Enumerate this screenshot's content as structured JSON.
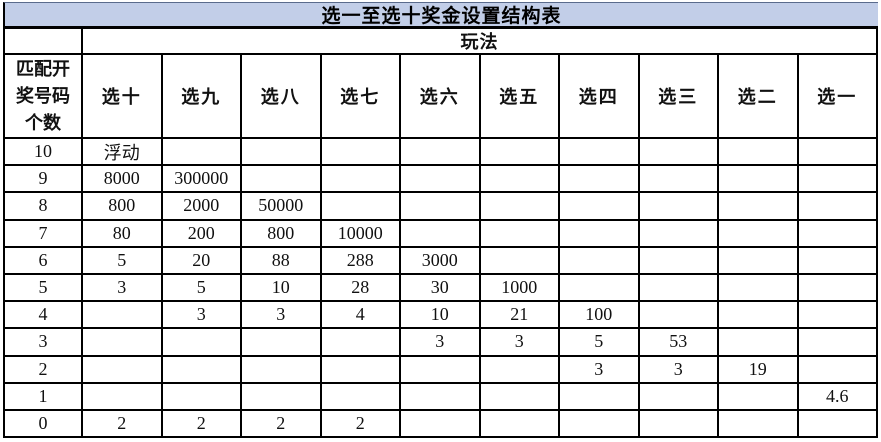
{
  "title": "选一至选十奖金设置结构表",
  "group_header": "玩法",
  "row_header": "匹配开奖号码个数",
  "columns": [
    "选十",
    "选九",
    "选八",
    "选七",
    "选六",
    "选五",
    "选四",
    "选三",
    "选二",
    "选一"
  ],
  "rows": [
    {
      "label": "10",
      "values": [
        "浮动",
        "",
        "",
        "",
        "",
        "",
        "",
        "",
        "",
        ""
      ]
    },
    {
      "label": "9",
      "values": [
        "8000",
        "300000",
        "",
        "",
        "",
        "",
        "",
        "",
        "",
        ""
      ]
    },
    {
      "label": "8",
      "values": [
        "800",
        "2000",
        "50000",
        "",
        "",
        "",
        "",
        "",
        "",
        ""
      ]
    },
    {
      "label": "7",
      "values": [
        "80",
        "200",
        "800",
        "10000",
        "",
        "",
        "",
        "",
        "",
        ""
      ]
    },
    {
      "label": "6",
      "values": [
        "5",
        "20",
        "88",
        "288",
        "3000",
        "",
        "",
        "",
        "",
        ""
      ]
    },
    {
      "label": "5",
      "values": [
        "3",
        "5",
        "10",
        "28",
        "30",
        "1000",
        "",
        "",
        "",
        ""
      ]
    },
    {
      "label": "4",
      "values": [
        "",
        "3",
        "3",
        "4",
        "10",
        "21",
        "100",
        "",
        "",
        ""
      ]
    },
    {
      "label": "3",
      "values": [
        "",
        "",
        "",
        "",
        "3",
        "3",
        "5",
        "53",
        "",
        ""
      ]
    },
    {
      "label": "2",
      "values": [
        "",
        "",
        "",
        "",
        "",
        "",
        "3",
        "3",
        "19",
        ""
      ]
    },
    {
      "label": "1",
      "values": [
        "",
        "",
        "",
        "",
        "",
        "",
        "",
        "",
        "",
        "4.6"
      ]
    },
    {
      "label": "0",
      "values": [
        "2",
        "2",
        "2",
        "2",
        "",
        "",
        "",
        "",
        "",
        ""
      ]
    }
  ],
  "colors": {
    "title_background": "#c2cee8",
    "border": "#000000",
    "cell_background": "#ffffff",
    "text": "#111111"
  }
}
